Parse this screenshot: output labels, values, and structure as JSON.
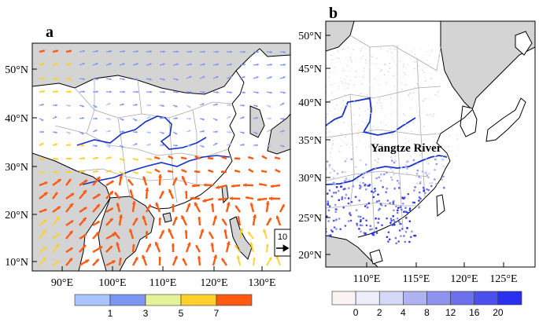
{
  "panels": {
    "a": {
      "letter": "a",
      "lat_ticks": [
        "10°N",
        "20°N",
        "30°N",
        "40°N",
        "50°N"
      ],
      "lon_ticks": [
        "90°E",
        "100°E",
        "110°E",
        "120°E",
        "130°E"
      ],
      "ref_vector_label": "10",
      "colorbar": {
        "labels": [
          "1",
          "3",
          "5",
          "7"
        ],
        "colors": [
          "#a9c4ff",
          "#7b97f2",
          "#e6f29a",
          "#ffd02a",
          "#ff5a12"
        ]
      },
      "vector_colors": [
        "#a9c4ff",
        "#7b97f2",
        "#e6f29a",
        "#ffd02a",
        "#ff5a12"
      ]
    },
    "b": {
      "letter": "b",
      "river_label": "Yangtze River",
      "lat_ticks": [
        "20°N",
        "25°N",
        "30°N",
        "35°N",
        "40°N",
        "45°N",
        "50°N"
      ],
      "lon_ticks": [
        "110°E",
        "115°E",
        "120°E",
        "125°E"
      ],
      "colorbar": {
        "labels": [
          "0",
          "2",
          "4",
          "8",
          "12",
          "16",
          "20"
        ],
        "colors": [
          "#fbf2f4",
          "#eeeefb",
          "#d6d8f8",
          "#b0b3f2",
          "#8f92ee",
          "#6c70ec",
          "#4c51ee",
          "#2a2ff0"
        ]
      }
    },
    "colors": {
      "land_mask": "#d4d4d4",
      "border": "#a8a8a8",
      "coast": "#000000",
      "river": "#1631c6"
    }
  }
}
